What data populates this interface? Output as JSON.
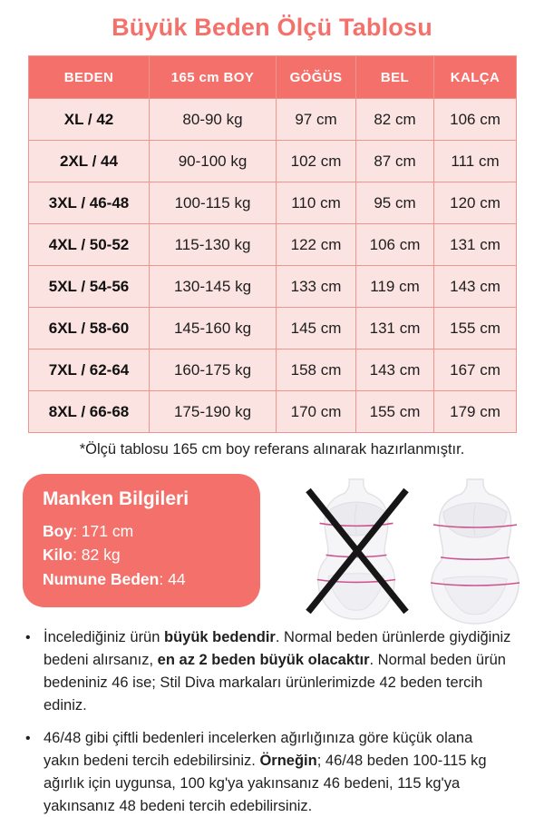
{
  "title": "Büyük Beden Ölçü Tablosu",
  "table": {
    "headers": [
      "BEDEN",
      "165 cm BOY",
      "GÖĞÜS",
      "BEL",
      "KALÇA"
    ],
    "rows": [
      [
        "XL / 42",
        "80-90 kg",
        "97 cm",
        "82 cm",
        "106 cm"
      ],
      [
        "2XL / 44",
        "90-100 kg",
        "102 cm",
        "87 cm",
        "111 cm"
      ],
      [
        "3XL / 46-48",
        "100-115 kg",
        "110 cm",
        "95 cm",
        "120 cm"
      ],
      [
        "4XL / 50-52",
        "115-130 kg",
        "122 cm",
        "106 cm",
        "131 cm"
      ],
      [
        "5XL / 54-56",
        "130-145 kg",
        "133 cm",
        "119 cm",
        "143 cm"
      ],
      [
        "6XL / 58-60",
        "145-160 kg",
        "145 cm",
        "131 cm",
        "155 cm"
      ],
      [
        "7XL / 62-64",
        "160-175 kg",
        "158 cm",
        "143 cm",
        "167 cm"
      ],
      [
        "8XL / 66-68",
        "175-190 kg",
        "170 cm",
        "155 cm",
        "179 cm"
      ]
    ]
  },
  "footnote": "*Ölçü tablosu 165 cm boy referans alınarak hazırlanmıştır.",
  "model_card": {
    "title": "Manken Bilgileri",
    "separator": ": ",
    "fields": [
      {
        "label": "Boy",
        "value": "171 cm"
      },
      {
        "label": "Kilo",
        "value": "82 kg"
      },
      {
        "label": "Numune Beden",
        "value": "44"
      }
    ]
  },
  "notes_bullet": "•",
  "notes": [
    {
      "segments": [
        {
          "text": "İncelediğiniz ürün ",
          "bold": false
        },
        {
          "text": "büyük bedendir",
          "bold": true
        },
        {
          "text": ". Normal beden ürünlerde giydiğiniz bedeni alırsanız, ",
          "bold": false
        },
        {
          "text": "en az 2 beden büyük olacaktır",
          "bold": true
        },
        {
          "text": ". Normal beden ürün bedeniniz 46 ise; Stil Diva markaları ürünlerimizde 42 beden tercih ediniz.",
          "bold": false
        }
      ]
    },
    {
      "segments": [
        {
          "text": "46/48 gibi çiftli bedenleri incelerken ağırlığınıza göre küçük olana yakın bedeni tercih edebilirsiniz. ",
          "bold": false
        },
        {
          "text": "Örneğin",
          "bold": true
        },
        {
          "text": "; 46/48 beden 100-115 kg ağırlık için uygunsa, 100 kg'ya yakınsanız 46 bedeni, 115 kg'ya yakınsanız 48 bedeni tercih edebilirsiniz.",
          "bold": false
        }
      ]
    }
  ],
  "colors": {
    "accent_coral": "#f4716b",
    "cell_pink": "#fbe3e1",
    "table_border": "#f0948e",
    "measure_line_pink": "#c9548f",
    "text_dark": "#1d1d1d"
  }
}
